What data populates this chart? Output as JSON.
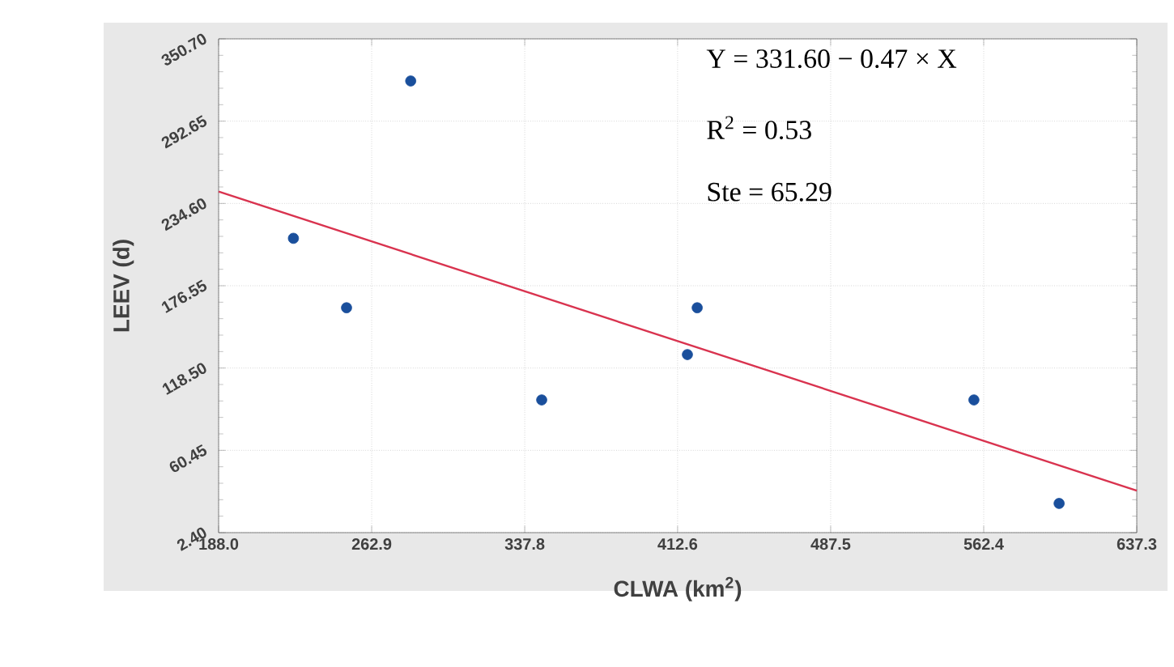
{
  "chart_data": {
    "type": "scatter",
    "xlabel": "CLWA (km$^{2}$)",
    "ylabel": "LEEV (d)",
    "xlim": [
      188.0,
      637.3
    ],
    "xticks": [
      {
        "value": 188.0,
        "label": "188.0"
      },
      {
        "value": 262.9,
        "label": "262.9"
      },
      {
        "value": 337.8,
        "label": "337.8"
      },
      {
        "value": 412.6,
        "label": "412.6"
      },
      {
        "value": 487.5,
        "label": "487.5"
      },
      {
        "value": 562.4,
        "label": "562.4"
      },
      {
        "value": 637.3,
        "label": "637.3"
      }
    ],
    "ylim": [
      2.4,
      350.7
    ],
    "yticks": [
      {
        "value": 2.4,
        "label": "2.40"
      },
      {
        "value": 60.45,
        "label": "60.45"
      },
      {
        "value": 118.5,
        "label": "118.50"
      },
      {
        "value": 176.55,
        "label": "176.55"
      },
      {
        "value": 234.6,
        "label": "234.60"
      },
      {
        "value": 292.65,
        "label": "292.65"
      },
      {
        "value": 350.7,
        "label": "350.70"
      }
    ],
    "grid": true,
    "series": [
      {
        "marker": "circle",
        "color": "#1a4f9c",
        "x": [
          224.6,
          250.6,
          282.0,
          346.1,
          417.4,
          422.2,
          557.6,
          599.3
        ],
        "values": [
          210,
          161,
          321,
          96,
          128,
          161,
          96,
          23
        ]
      },
      {
        "type": "line",
        "marker": "none",
        "line_style": "solid",
        "color": "#d9334f",
        "x": [
          188.0,
          637.3
        ],
        "values": [
          243,
          32
        ]
      }
    ],
    "annotations": [
      "Y = 331.60 − 0.47 × X",
      "R$^{2}$ = 0.53",
      "Ste = 65.29"
    ]
  }
}
